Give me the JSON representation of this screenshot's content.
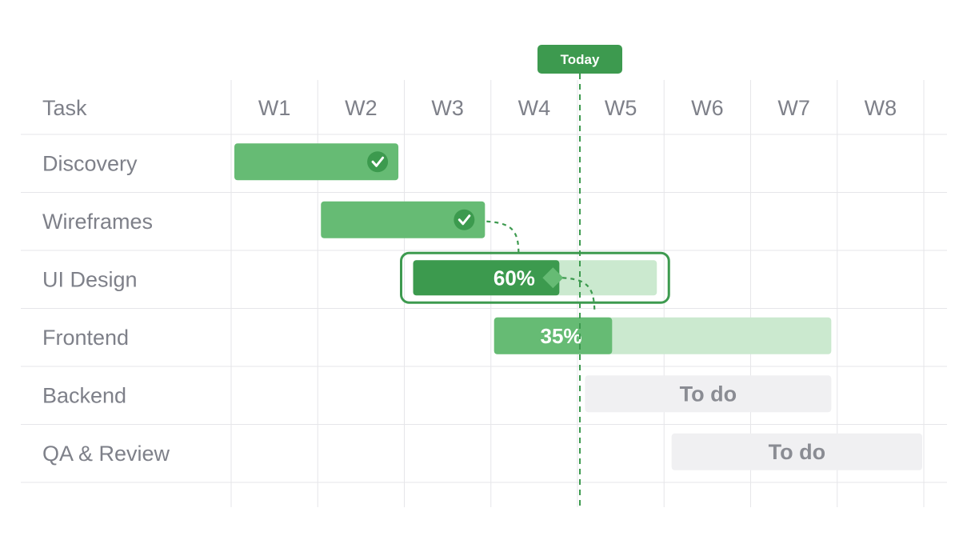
{
  "colors": {
    "done": "#66bb74",
    "progress_dark": "#3c9a4e",
    "progress": "#66bb74",
    "remaining": "#cbe9cf",
    "todo": "#f0f0f2",
    "today": "#3d9a4f",
    "grid": "#e6e6e9",
    "label": "#7e8089"
  },
  "chart_data": {
    "type": "gantt",
    "header_label": "Task",
    "weeks": [
      "W1",
      "W2",
      "W3",
      "W4",
      "W5",
      "W6",
      "W7",
      "W8"
    ],
    "today": {
      "label": "Today",
      "week": 4.0
    },
    "tasks": [
      {
        "name": "Discovery",
        "start": 0.0,
        "end": 1.95,
        "status": "done",
        "icon": "check-icon"
      },
      {
        "name": "Wireframes",
        "start": 1.0,
        "end": 2.95,
        "status": "done",
        "icon": "check-icon"
      },
      {
        "name": "UI Design",
        "start": 2.0,
        "end": 5.0,
        "status": "in-progress",
        "progress": 0.6,
        "label": "60%",
        "selected": true
      },
      {
        "name": "Frontend",
        "start": 3.0,
        "end": 6.95,
        "status": "in-progress",
        "progress": 0.35,
        "label": "35%"
      },
      {
        "name": "Backend",
        "start": 4.05,
        "end": 6.95,
        "status": "todo",
        "label": "To do"
      },
      {
        "name": "QA & Review",
        "start": 5.05,
        "end": 8.0,
        "status": "todo",
        "label": "To do"
      }
    ],
    "dependencies": [
      {
        "from": "Wireframes",
        "to": "UI Design"
      },
      {
        "from": "UI Design",
        "to": "Frontend"
      }
    ]
  }
}
